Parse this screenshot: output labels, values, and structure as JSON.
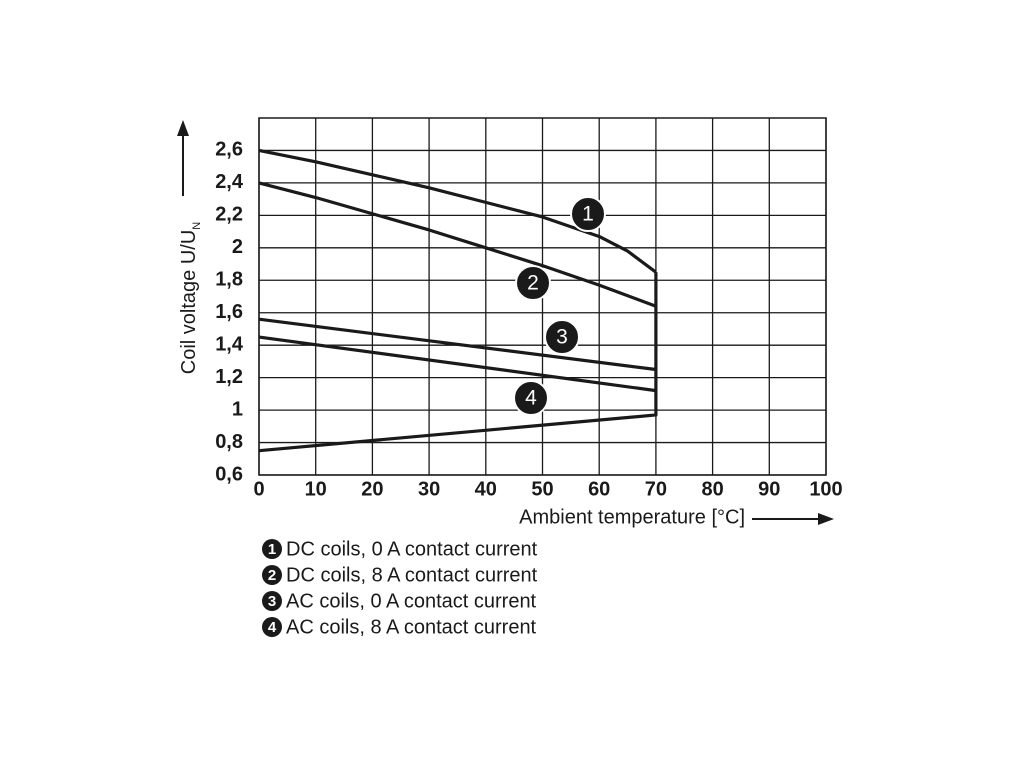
{
  "chart_data": {
    "type": "line",
    "ylabel": "Coil voltage U/U",
    "ylabel_sub": "N",
    "xlabel": "Ambient temperature [°C]",
    "xlim": [
      0,
      100
    ],
    "xticks": [
      0,
      10,
      20,
      30,
      40,
      50,
      60,
      70,
      80,
      90,
      100
    ],
    "ylim": [
      0.6,
      2.8
    ],
    "yticks": [
      {
        "value": 0.6,
        "label": "0,6"
      },
      {
        "value": 0.8,
        "label": "0,8"
      },
      1,
      {
        "value": 1.2,
        "label": "1,2"
      },
      {
        "value": 1.4,
        "label": "1,4"
      },
      {
        "value": 1.6,
        "label": "1,6"
      },
      {
        "value": 1.8,
        "label": "1,8"
      },
      2,
      {
        "value": 2.2,
        "label": "2,2"
      },
      {
        "value": 2.4,
        "label": "2,4"
      },
      {
        "value": 2.6,
        "label": "2,6"
      }
    ],
    "grid": true,
    "series": [
      {
        "key": "1",
        "name": "DC coils, 0 A contact current",
        "color": "#1a1a1a",
        "x": [
          0,
          10,
          20,
          30,
          40,
          50,
          60,
          65,
          70
        ],
        "values": [
          2.6,
          2.53,
          2.45,
          2.37,
          2.28,
          2.19,
          2.07,
          1.98,
          1.85
        ]
      },
      {
        "key": "2",
        "name": "DC coils, 8 A contact current",
        "color": "#1a1a1a",
        "x": [
          0,
          10,
          20,
          30,
          40,
          50,
          60,
          70
        ],
        "values": [
          2.4,
          2.31,
          2.21,
          2.11,
          2.0,
          1.89,
          1.77,
          1.64
        ]
      },
      {
        "key": "3",
        "name": "AC coils, 0 A contact current",
        "color": "#1a1a1a",
        "x": [
          0,
          70
        ],
        "values": [
          1.56,
          1.25
        ]
      },
      {
        "key": "4",
        "name": "AC coils, 8 A contact current",
        "color": "#1a1a1a",
        "x": [
          0,
          70
        ],
        "values": [
          1.45,
          1.12
        ]
      },
      {
        "color": "#1a1a1a",
        "x": [
          0,
          70,
          70
        ],
        "values": [
          0.75,
          0.97,
          1.85
        ]
      }
    ]
  }
}
